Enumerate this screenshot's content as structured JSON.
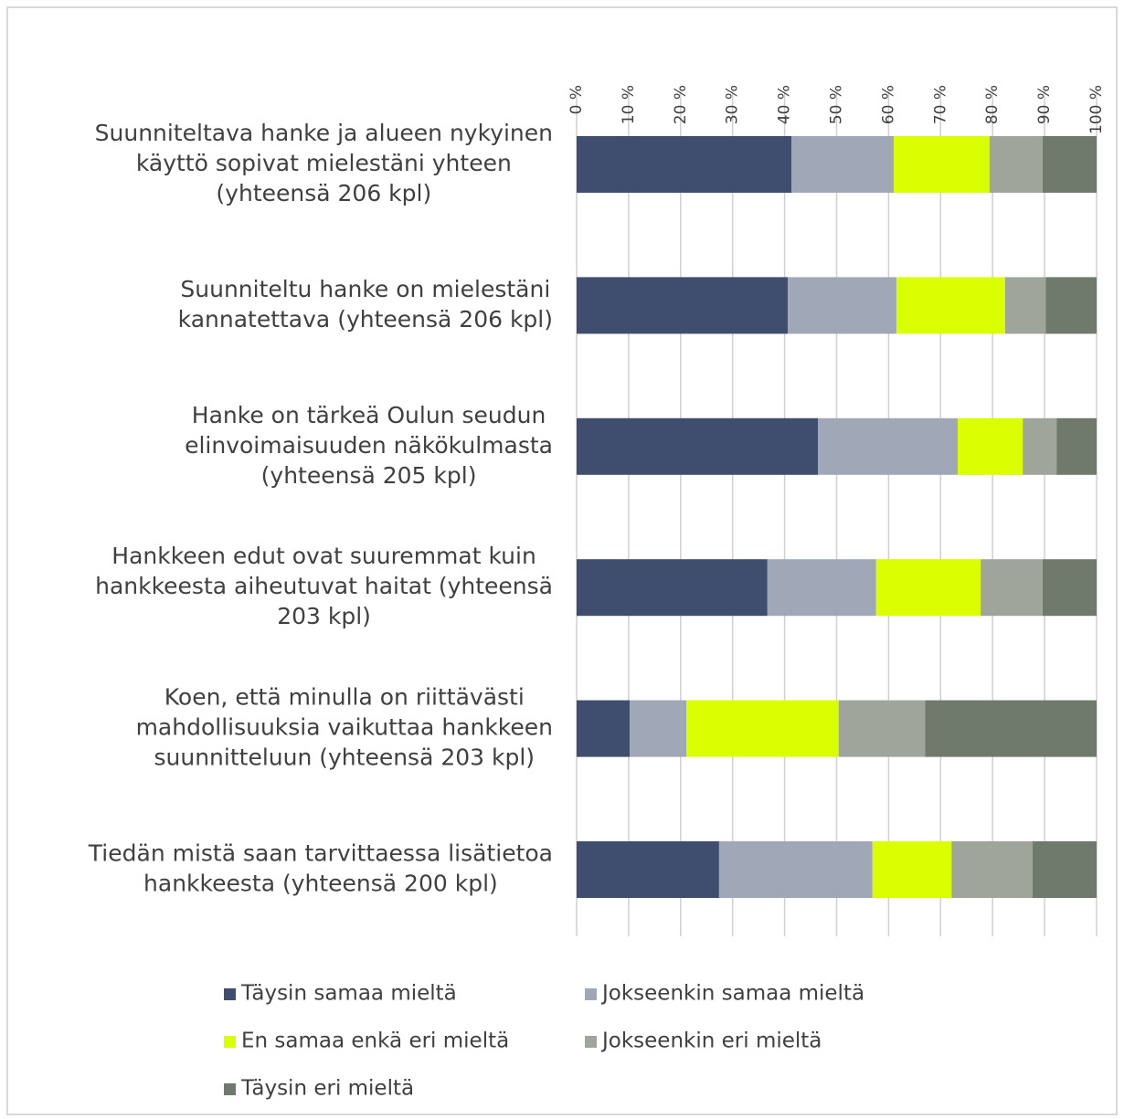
{
  "chart_data": {
    "type": "stacked_bar_horizontal",
    "categories": [
      [
        "Suunniteltava hanke ja alueen nykyinen",
        "käyttö sopivat mielestäni yhteen",
        "(yhteensä 206 kpl)"
      ],
      [
        "Suunniteltu hanke on mielestäni",
        "kannatettava (yhteensä 206 kpl)"
      ],
      [
        "Hanke on tärkeä Oulun seudun",
        "elinvoimaisuuden näkökulmasta",
        "(yhteensä 205 kpl)"
      ],
      [
        "Hankkeen edut ovat suuremmat kuin",
        "hankkeesta aiheutuvat haitat (yhteensä",
        "203 kpl)"
      ],
      [
        "Koen, että minulla on riittävästi",
        "mahdollisuuksia vaikuttaa hankkeen",
        "suunnitteluun (yhteensä 203 kpl)"
      ],
      [
        "Tiedän mistä saan tarvittaessa lisätietoa",
        "hankkeesta (yhteensä 200 kpl)"
      ]
    ],
    "series": [
      {
        "name": "Täysin samaa mieltä",
        "color": "#3f4e6e",
        "values": [
          41.3,
          40.6,
          46.4,
          36.7,
          10.2,
          27.4
        ]
      },
      {
        "name": "Jokseenkin samaa mieltä",
        "color": "#a0a8b8",
        "values": [
          19.7,
          20.9,
          26.9,
          20.9,
          10.9,
          29.5
        ]
      },
      {
        "name": "En samaa enkä eri mieltä",
        "color": "#d9ff00",
        "values": [
          18.4,
          20.9,
          12.5,
          20.1,
          29.3,
          15.2
        ]
      },
      {
        "name": "Jokseenkin eri mieltä",
        "color": "#a0a59b",
        "values": [
          10.2,
          7.8,
          6.5,
          11.9,
          16.6,
          15.6
        ]
      },
      {
        "name": "Täysin eri mieltä",
        "color": "#6f7a6c",
        "values": [
          10.4,
          9.8,
          7.7,
          10.4,
          33.0,
          12.3
        ]
      }
    ],
    "xlim": [
      0,
      100
    ],
    "xticks": [
      {
        "value": 0,
        "label": "0 %"
      },
      {
        "value": 10,
        "label": "10 %"
      },
      {
        "value": 20,
        "label": "20 %"
      },
      {
        "value": 30,
        "label": "30 %"
      },
      {
        "value": 40,
        "label": "40 %"
      },
      {
        "value": 50,
        "label": "50 %"
      },
      {
        "value": 60,
        "label": "60 %"
      },
      {
        "value": 70,
        "label": "70 %"
      },
      {
        "value": 80,
        "label": "80 %"
      },
      {
        "value": 90,
        "label": "90 %"
      },
      {
        "value": 100,
        "label": "100 %"
      }
    ],
    "grid": true
  }
}
